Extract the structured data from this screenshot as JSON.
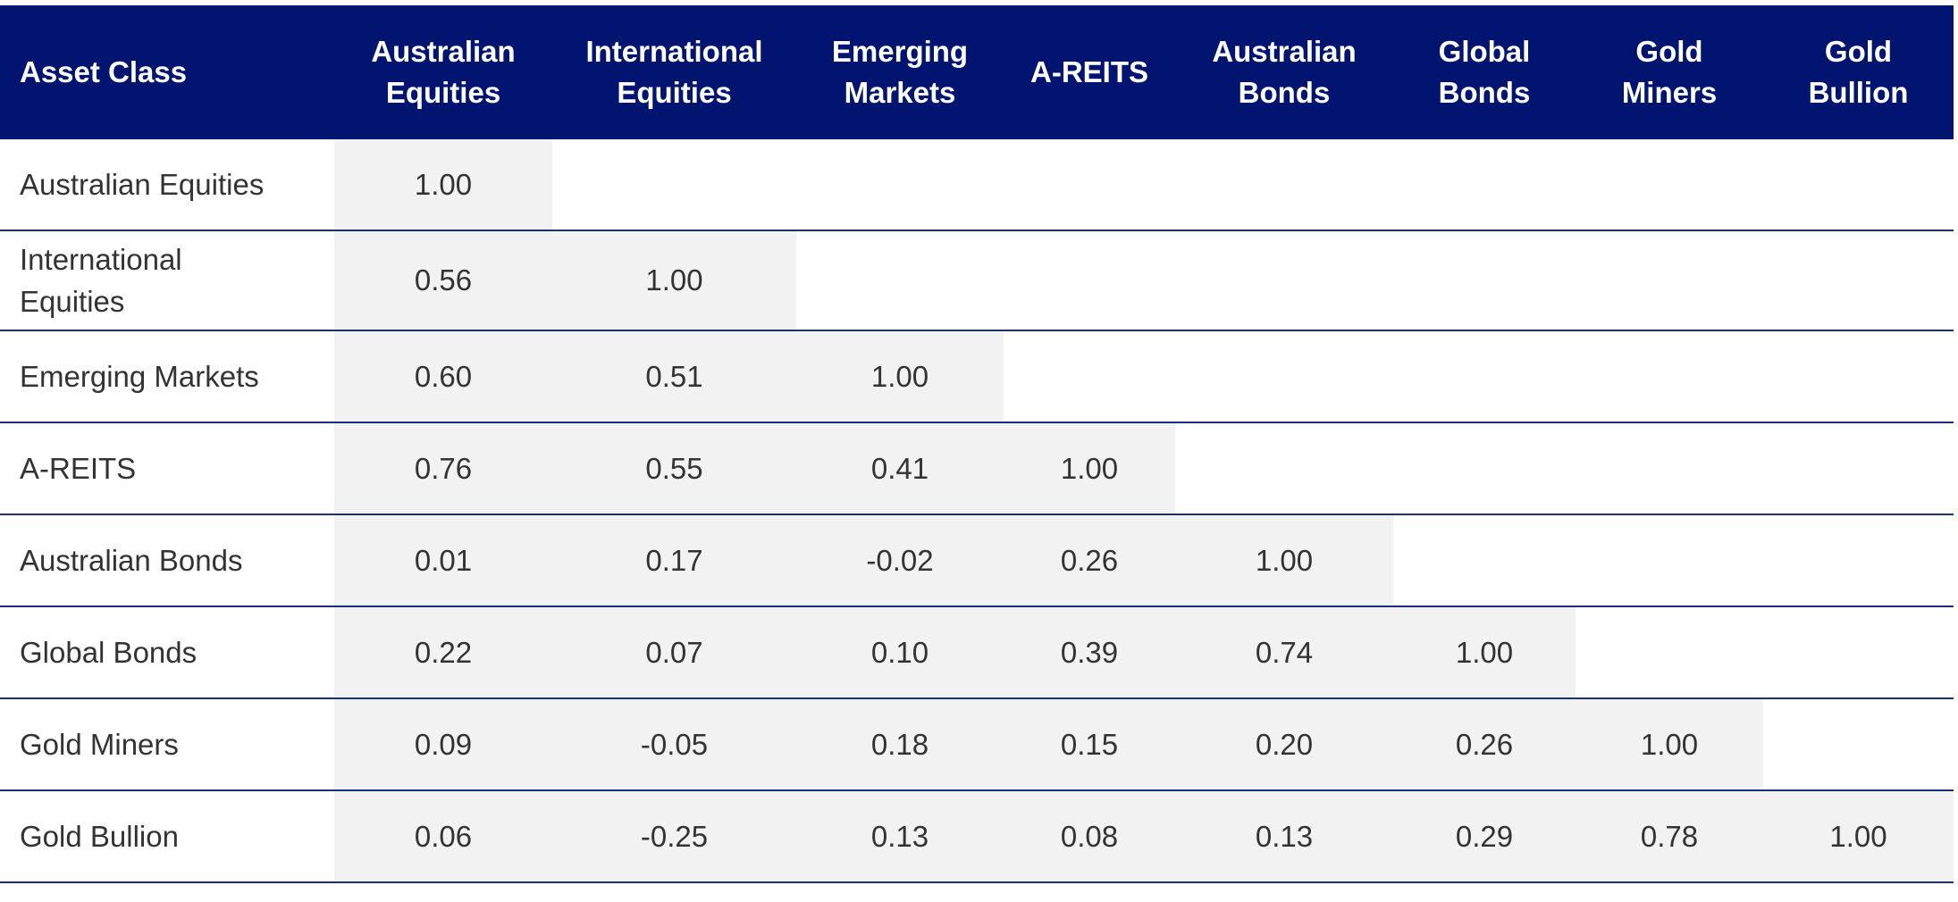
{
  "chart_data": {
    "type": "table",
    "header": {
      "corner": "Asset Class",
      "columns": [
        [
          "Australian",
          "Equities"
        ],
        [
          "International",
          "Equities"
        ],
        [
          "Emerging",
          "Markets"
        ],
        [
          "A-REITS"
        ],
        [
          "Australian",
          "Bonds"
        ],
        [
          "Global",
          "Bonds"
        ],
        [
          "Gold",
          "Miners"
        ],
        [
          "Gold",
          "Bullion"
        ]
      ]
    },
    "rows": [
      {
        "label": "Australian Equities",
        "values": [
          "1.00"
        ]
      },
      {
        "label": "International Equities",
        "values": [
          "0.56",
          "1.00"
        ]
      },
      {
        "label": "Emerging Markets",
        "values": [
          "0.60",
          "0.51",
          "1.00"
        ]
      },
      {
        "label": "A-REITS",
        "values": [
          "0.76",
          "0.55",
          "0.41",
          "1.00"
        ]
      },
      {
        "label": "Australian Bonds",
        "values": [
          "0.01",
          "0.17",
          "-0.02",
          "0.26",
          "1.00"
        ]
      },
      {
        "label": "Global Bonds",
        "values": [
          "0.22",
          "0.07",
          "0.10",
          "0.39",
          "0.74",
          "1.00"
        ]
      },
      {
        "label": "Gold Miners",
        "values": [
          "0.09",
          "-0.05",
          "0.18",
          "0.15",
          "0.20",
          "0.26",
          "1.00"
        ]
      },
      {
        "label": "Gold Bullion",
        "values": [
          "0.06",
          "-0.25",
          "0.13",
          "0.08",
          "0.13",
          "0.29",
          "0.78",
          "1.00"
        ]
      }
    ],
    "colors": {
      "header_background": "#011570",
      "header_text": "#ffffff",
      "cell_shade": "#f2f2f2",
      "row_rule": "#1a2f7a",
      "body_text": "#333333"
    }
  }
}
